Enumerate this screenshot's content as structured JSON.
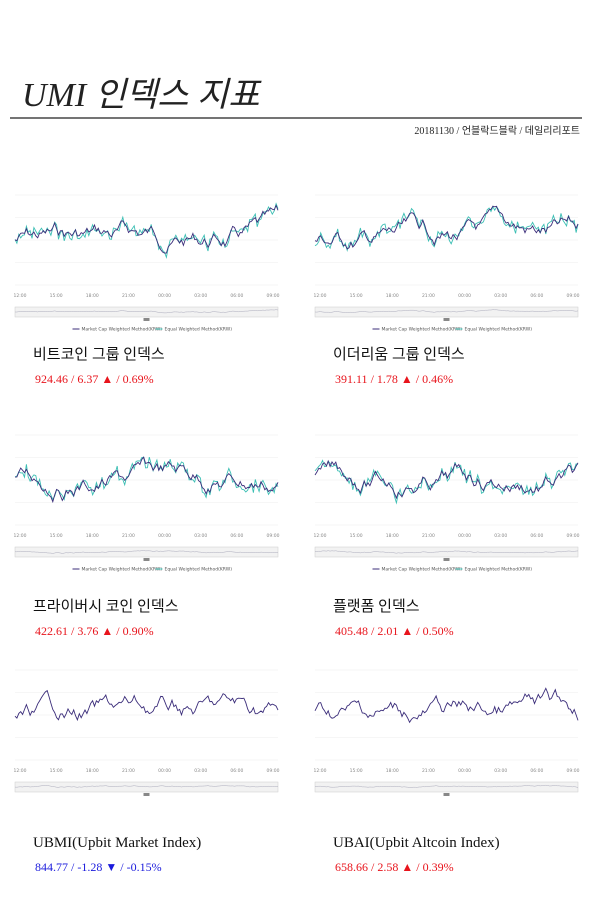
{
  "header": {
    "title": "UMI 인덱스 지표",
    "byline": "20181130 / 언블락드블락 / 데일리리포트"
  },
  "legend": [
    "Market Cap Weighted Method(KRW)",
    "Equal Weighted Method(KRW)"
  ],
  "time_labels": [
    "12:00",
    "15:00",
    "18:00",
    "21:00",
    "00:00",
    "03:00",
    "06:00",
    "09:00"
  ],
  "panels": [
    {
      "name": "비트코인 그룹 인덱스",
      "value": "924.46",
      "change": "6.37",
      "percent": "0.69%",
      "direction": "up",
      "legend": true
    },
    {
      "name": "이더리움 그룹 인덱스",
      "value": "391.11",
      "change": "1.78",
      "percent": "0.46%",
      "direction": "up",
      "legend": true
    },
    {
      "name": "프라이버시 코인 인덱스",
      "value": "422.61",
      "change": "3.76",
      "percent": "0.90%",
      "direction": "up",
      "legend": true
    },
    {
      "name": "플랫폼 인덱스",
      "value": "405.48",
      "change": "2.01",
      "percent": "0.50%",
      "direction": "up",
      "legend": true
    },
    {
      "name": "UBMI(Upbit Market Index)",
      "value": "844.77",
      "change": "-1.28",
      "percent": "-0.15%",
      "direction": "down",
      "legend": false
    },
    {
      "name": "UBAI(Upbit Altcoin Index)",
      "value": "658.66",
      "change": "2.58",
      "percent": "0.39%",
      "direction": "up",
      "legend": false
    }
  ]
}
